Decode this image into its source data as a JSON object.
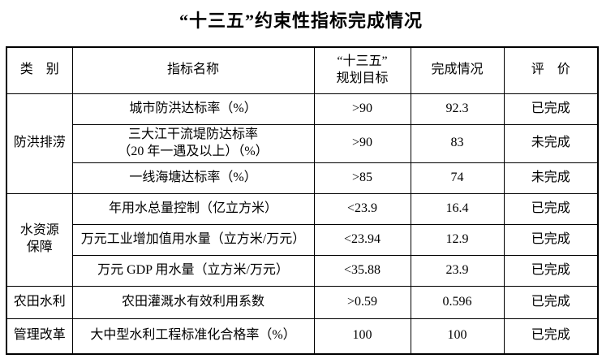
{
  "page": {
    "title": "“十三五”约束性指标完成情况"
  },
  "table": {
    "header": {
      "category": "类　别",
      "indicator": "指标名称",
      "target": "“十三五”\n规划目标",
      "completion": "完成情况",
      "evaluation": "评　价"
    },
    "groups": [
      {
        "category": "防洪排涝",
        "rows": [
          {
            "indicator": "城市防洪达标率（%）",
            "target": ">90",
            "completion": "92.3",
            "evaluation": "已完成"
          },
          {
            "indicator": "三大江干流堤防达标率\n（20 年一遇及以上）（%）",
            "target": ">90",
            "completion": "83",
            "evaluation": "未完成"
          },
          {
            "indicator": "一线海塘达标率（%）",
            "target": ">85",
            "completion": "74",
            "evaluation": "未完成"
          }
        ]
      },
      {
        "category": "水资源\n保障",
        "rows": [
          {
            "indicator": "年用水总量控制（亿立方米）",
            "target": "<23.9",
            "completion": "16.4",
            "evaluation": "已完成"
          },
          {
            "indicator": "万元工业增加值用水量（立方米/万元）",
            "target": "<23.94",
            "completion": "12.9",
            "evaluation": "已完成"
          },
          {
            "indicator": "万元 GDP 用水量（立方米/万元）",
            "target": "<35.88",
            "completion": "23.9",
            "evaluation": "已完成"
          }
        ]
      },
      {
        "category": "农田水利",
        "rows": [
          {
            "indicator": "农田灌溉水有效利用系数",
            "target": ">0.59",
            "completion": "0.596",
            "evaluation": "已完成"
          }
        ]
      },
      {
        "category": "管理改革",
        "rows": [
          {
            "indicator": "大中型水利工程标准化合格率（%）",
            "target": "100",
            "completion": "100",
            "evaluation": "已完成"
          }
        ]
      }
    ]
  }
}
